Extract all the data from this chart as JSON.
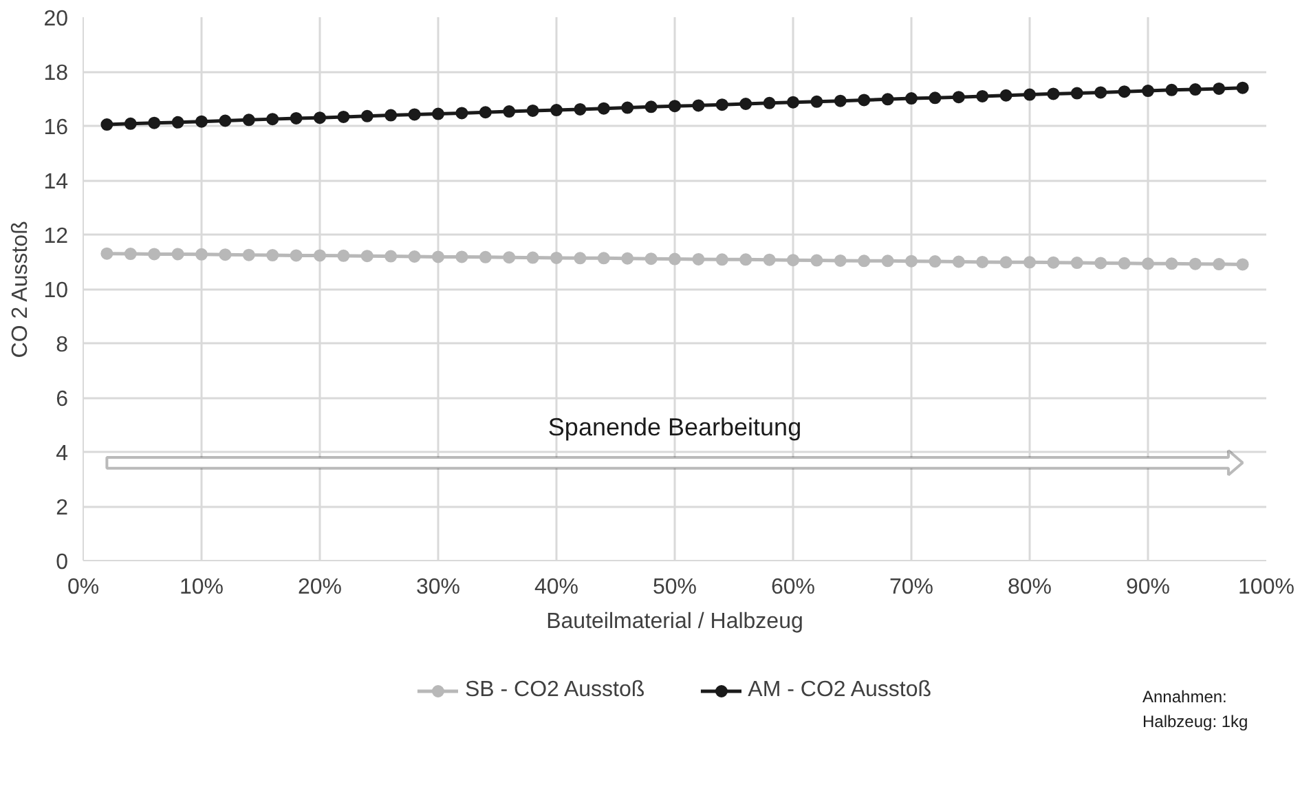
{
  "chart_data": {
    "type": "line",
    "ylabel": "CO 2 Ausstoß",
    "xlabel": "Bauteilmaterial / Halbzeug",
    "x": [
      2,
      4,
      6,
      8,
      10,
      12,
      14,
      16,
      18,
      20,
      22,
      24,
      26,
      28,
      30,
      32,
      34,
      36,
      38,
      40,
      42,
      44,
      46,
      48,
      50,
      52,
      54,
      56,
      58,
      60,
      62,
      64,
      66,
      68,
      70,
      72,
      74,
      76,
      78,
      80,
      82,
      84,
      86,
      88,
      90,
      92,
      94,
      96,
      98
    ],
    "series": [
      {
        "name": "SB - CO2 Ausstoß",
        "color": "#b8b8b8",
        "values": [
          11.3,
          11.29,
          11.28,
          11.28,
          11.27,
          11.26,
          11.25,
          11.24,
          11.23,
          11.23,
          11.22,
          11.21,
          11.2,
          11.19,
          11.18,
          11.18,
          11.17,
          11.16,
          11.15,
          11.14,
          11.13,
          11.13,
          11.12,
          11.11,
          11.1,
          11.09,
          11.08,
          11.08,
          11.07,
          11.06,
          11.05,
          11.04,
          11.03,
          11.03,
          11.02,
          11.01,
          11.0,
          10.99,
          10.98,
          10.98,
          10.97,
          10.96,
          10.95,
          10.94,
          10.93,
          10.93,
          10.92,
          10.91,
          10.9
        ]
      },
      {
        "name": "AM - CO2 Ausstoß",
        "color": "#1a1a1a",
        "values": [
          16.05,
          16.08,
          16.11,
          16.13,
          16.16,
          16.19,
          16.22,
          16.25,
          16.28,
          16.3,
          16.33,
          16.36,
          16.39,
          16.42,
          16.44,
          16.47,
          16.5,
          16.53,
          16.56,
          16.58,
          16.61,
          16.64,
          16.67,
          16.7,
          16.73,
          16.75,
          16.78,
          16.81,
          16.84,
          16.87,
          16.89,
          16.92,
          16.95,
          16.98,
          17.01,
          17.03,
          17.06,
          17.09,
          17.12,
          17.15,
          17.18,
          17.2,
          17.23,
          17.26,
          17.29,
          17.32,
          17.34,
          17.37,
          17.4
        ]
      }
    ],
    "xlim": [
      0,
      100
    ],
    "xticks": [
      {
        "value": 0,
        "label": "0%"
      },
      {
        "value": 10,
        "label": "10%"
      },
      {
        "value": 20,
        "label": "20%"
      },
      {
        "value": 30,
        "label": "30%"
      },
      {
        "value": 40,
        "label": "40%"
      },
      {
        "value": 50,
        "label": "50%"
      },
      {
        "value": 60,
        "label": "60%"
      },
      {
        "value": 70,
        "label": "70%"
      },
      {
        "value": 80,
        "label": "80%"
      },
      {
        "value": 90,
        "label": "90%"
      },
      {
        "value": 100,
        "label": "100%"
      }
    ],
    "ylim": [
      0,
      20
    ],
    "yticks": [
      0,
      2,
      4,
      6,
      8,
      10,
      12,
      14,
      16,
      18,
      20
    ],
    "annotations": [
      "Spanende Bearbeitung",
      "Annahmen:",
      "Halbzeug: 1kg"
    ],
    "grid": true,
    "legend": "bottom",
    "marker": "circle",
    "line_style": "solid"
  }
}
